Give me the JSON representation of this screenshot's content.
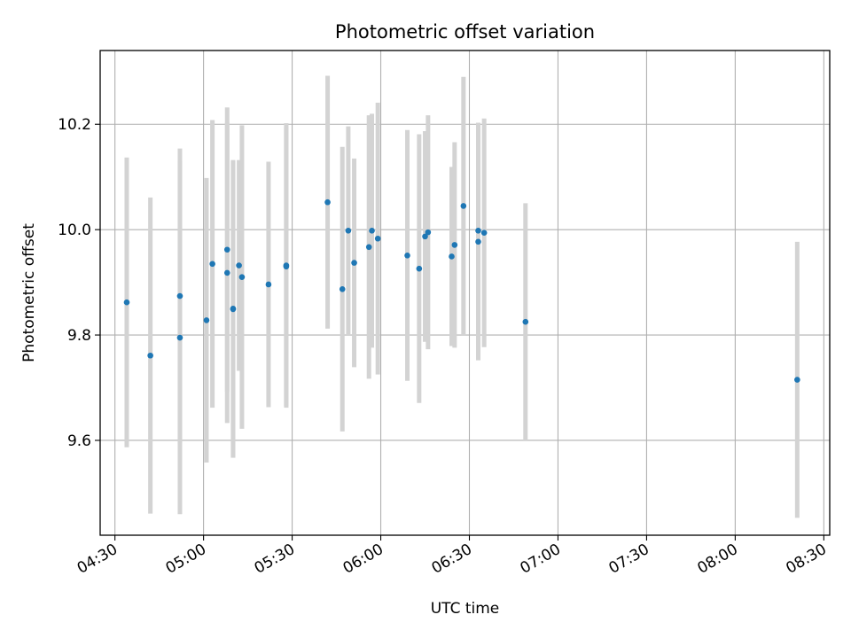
{
  "chart_data": {
    "type": "scatter",
    "title": "Photometric offset variation",
    "xlabel": "UTC time",
    "ylabel": "Photometric offset",
    "x_unit": "time of day (UTC, HH:MM)",
    "xlim": [
      "04:25",
      "08:32"
    ],
    "ylim": [
      9.42,
      10.34
    ],
    "x_ticks": [
      "04:30",
      "05:00",
      "05:30",
      "06:00",
      "06:30",
      "07:00",
      "07:30",
      "08:00",
      "08:30"
    ],
    "y_ticks": [
      9.6,
      9.8,
      10.0,
      10.2
    ],
    "y_tick_labels": [
      "9.6",
      "9.8",
      "10.0",
      "10.2"
    ],
    "grid": true,
    "legend": "none",
    "colors": {
      "marker": "#1f77b4",
      "errorbar": "#d3d3d3",
      "grid": "#b0b0b0"
    },
    "series": [
      {
        "points": [
          {
            "x": "04:34",
            "y": 9.862,
            "err": 0.275
          },
          {
            "x": "04:42",
            "y": 9.761,
            "err": 0.3
          },
          {
            "x": "04:52",
            "y": 9.874,
            "err": 0.28
          },
          {
            "x": "04:52",
            "y": 9.795,
            "err": 0.335
          },
          {
            "x": "05:01",
            "y": 9.828,
            "err": 0.27
          },
          {
            "x": "05:03",
            "y": 9.935,
            "err": 0.273
          },
          {
            "x": "05:08",
            "y": 9.962,
            "err": 0.27
          },
          {
            "x": "05:08",
            "y": 9.918,
            "err": 0.285
          },
          {
            "x": "05:10",
            "y": 9.849,
            "err": 0.282
          },
          {
            "x": "05:10",
            "y": 9.85,
            "err": 0.282
          },
          {
            "x": "05:12",
            "y": 9.932,
            "err": 0.2
          },
          {
            "x": "05:13",
            "y": 9.91,
            "err": 0.288
          },
          {
            "x": "05:22",
            "y": 9.896,
            "err": 0.233
          },
          {
            "x": "05:28",
            "y": 9.93,
            "err": 0.265
          },
          {
            "x": "05:28",
            "y": 9.932,
            "err": 0.27
          },
          {
            "x": "05:42",
            "y": 10.052,
            "err": 0.24
          },
          {
            "x": "05:47",
            "y": 9.887,
            "err": 0.27
          },
          {
            "x": "05:49",
            "y": 9.998,
            "err": 0.198
          },
          {
            "x": "05:51",
            "y": 9.937,
            "err": 0.198
          },
          {
            "x": "05:56",
            "y": 9.967,
            "err": 0.25
          },
          {
            "x": "05:57",
            "y": 9.998,
            "err": 0.222
          },
          {
            "x": "05:59",
            "y": 9.983,
            "err": 0.258
          },
          {
            "x": "06:09",
            "y": 9.951,
            "err": 0.238
          },
          {
            "x": "06:13",
            "y": 9.926,
            "err": 0.255
          },
          {
            "x": "06:15",
            "y": 9.987,
            "err": 0.2
          },
          {
            "x": "06:16",
            "y": 9.995,
            "err": 0.222
          },
          {
            "x": "06:24",
            "y": 9.949,
            "err": 0.17
          },
          {
            "x": "06:25",
            "y": 9.971,
            "err": 0.195
          },
          {
            "x": "06:28",
            "y": 10.045,
            "err": 0.245
          },
          {
            "x": "06:33",
            "y": 9.998,
            "err": 0.205
          },
          {
            "x": "06:33",
            "y": 9.977,
            "err": 0.225
          },
          {
            "x": "06:35",
            "y": 9.994,
            "err": 0.217
          },
          {
            "x": "06:49",
            "y": 9.825,
            "err": 0.225
          },
          {
            "x": "08:21",
            "y": 9.715,
            "err": 0.262
          }
        ]
      }
    ]
  }
}
